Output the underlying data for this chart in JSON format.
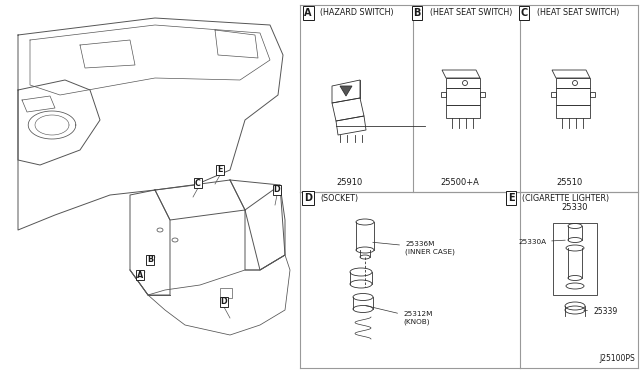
{
  "bg_color": "#f5f5f5",
  "fig_width": 6.4,
  "fig_height": 3.72,
  "dpi": 100,
  "text_color": "#1a1a1a",
  "line_color": "#333333",
  "label_A": "(HAZARD SWITCH)",
  "label_B": "(HEAT SEAT SWITCH)",
  "label_C": "(HEAT SEAT SWITCH)",
  "label_D": "(SOCKET)",
  "label_E": "(CIGARETTE LIGHTER)",
  "part_num_A": "25910",
  "part_num_B": "25500+A",
  "part_num_C": "25510",
  "part_num_D1": "25336M",
  "part_num_D1b": "(INNER CASE)",
  "part_num_D2": "25312M",
  "part_num_D2b": "(KNOB)",
  "part_num_E_title": "25330",
  "part_num_E1": "25330A",
  "part_num_E2": "25339",
  "diagram_ref": "J25100PS"
}
